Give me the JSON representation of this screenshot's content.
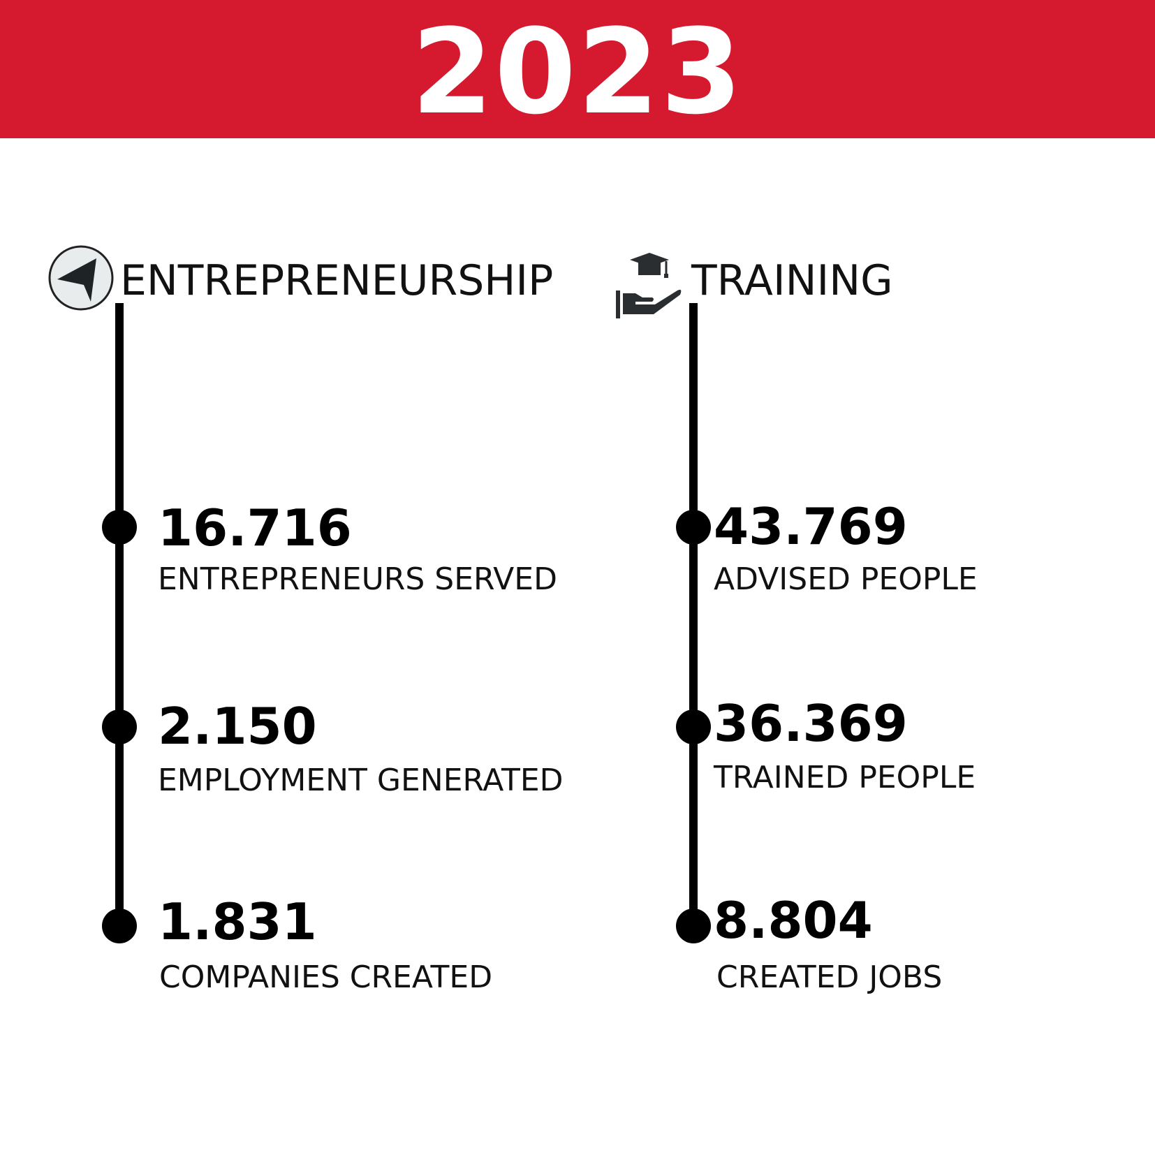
{
  "header": {
    "year": "2023",
    "bg_color": "#d51a2f"
  },
  "sections": [
    {
      "title": "ENTREPRENEURSHIP",
      "icon": "navigation-arrow-icon",
      "stats": [
        {
          "value": "16.716",
          "label": "ENTREPRENEURS SERVED"
        },
        {
          "value": "2.150",
          "label": "EMPLOYMENT GENERATED"
        },
        {
          "value": "1.831",
          "label": "COMPANIES CREATED"
        }
      ]
    },
    {
      "title": "TRAINING",
      "icon": "graduation-cap-hand-icon",
      "stats": [
        {
          "value": "43.769",
          "label": "ADVISED PEOPLE"
        },
        {
          "value": "36.369",
          "label": "TRAINED PEOPLE"
        },
        {
          "value": "8.804",
          "label": "CREATED JOBS"
        }
      ]
    }
  ]
}
